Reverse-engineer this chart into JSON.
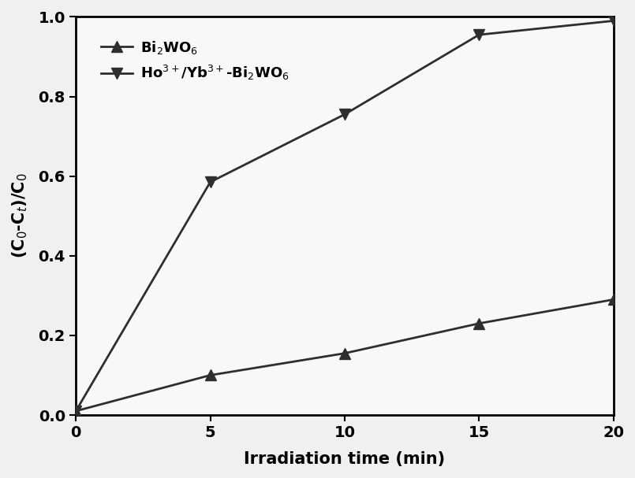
{
  "series1_label": "Bi$_2$WO$_6$",
  "series2_label": "Ho$^{3+}$/Yb$^{3+}$-Bi$_2$WO$_6$",
  "series1_x": [
    0,
    5,
    10,
    15,
    20
  ],
  "series1_y": [
    0.01,
    0.1,
    0.155,
    0.23,
    0.29
  ],
  "series2_x": [
    0,
    5,
    10,
    15,
    20
  ],
  "series2_y": [
    0.01,
    0.585,
    0.755,
    0.955,
    0.99
  ],
  "xlabel": "Irradiation time (min)",
  "ylabel": "(C$_0$-C$_t$)/C$_0$",
  "xlim": [
    0,
    20
  ],
  "ylim": [
    0,
    1.0
  ],
  "xticks": [
    0,
    5,
    10,
    15,
    20
  ],
  "yticks": [
    0.0,
    0.2,
    0.4,
    0.6,
    0.8,
    1.0
  ],
  "line_color": "#2e2e2e",
  "marker_color": "#2e2e2e",
  "background_color": "#f0f0f0",
  "plot_bg_color": "#f8f8f8",
  "label_fontsize": 15,
  "tick_fontsize": 14,
  "legend_fontsize": 13,
  "linewidth": 2.0,
  "markersize": 10
}
